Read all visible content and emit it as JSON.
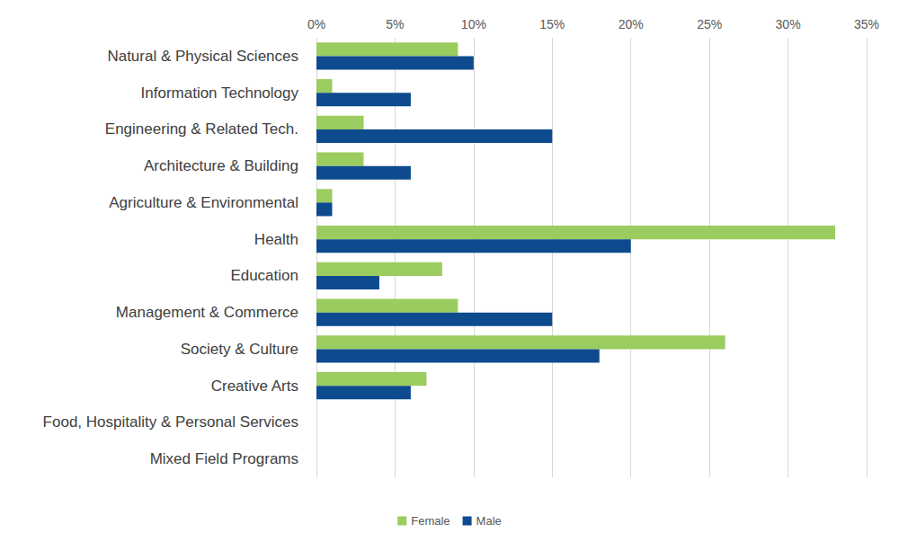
{
  "chart_data": {
    "type": "bar",
    "orientation": "horizontal",
    "categories": [
      "Natural & Physical Sciences",
      "Information Technology",
      "Engineering & Related Tech.",
      "Architecture & Building",
      "Agriculture & Environmental",
      "Health",
      "Education",
      "Management & Commerce",
      "Society & Culture",
      "Creative Arts",
      "Food, Hospitality & Personal Services",
      "Mixed Field Programs"
    ],
    "series": [
      {
        "name": "Female",
        "color": "#9bcc5f",
        "values": [
          9,
          1,
          3,
          3,
          1,
          33,
          8,
          9,
          26,
          7,
          0,
          0
        ]
      },
      {
        "name": "Male",
        "color": "#0d4b8e",
        "values": [
          10,
          6,
          15,
          6,
          1,
          20,
          4,
          15,
          18,
          6,
          0,
          0
        ]
      }
    ],
    "xlim": [
      0,
      35
    ],
    "xticks": [
      {
        "value": 0,
        "label": "0%"
      },
      {
        "value": 5,
        "label": "5%"
      },
      {
        "value": 10,
        "label": "10%"
      },
      {
        "value": 15,
        "label": "15%"
      },
      {
        "value": 20,
        "label": "20%"
      },
      {
        "value": 25,
        "label": "25%"
      },
      {
        "value": 30,
        "label": "30%"
      },
      {
        "value": 35,
        "label": "35%"
      }
    ],
    "grid": true,
    "legend": "bottom"
  }
}
